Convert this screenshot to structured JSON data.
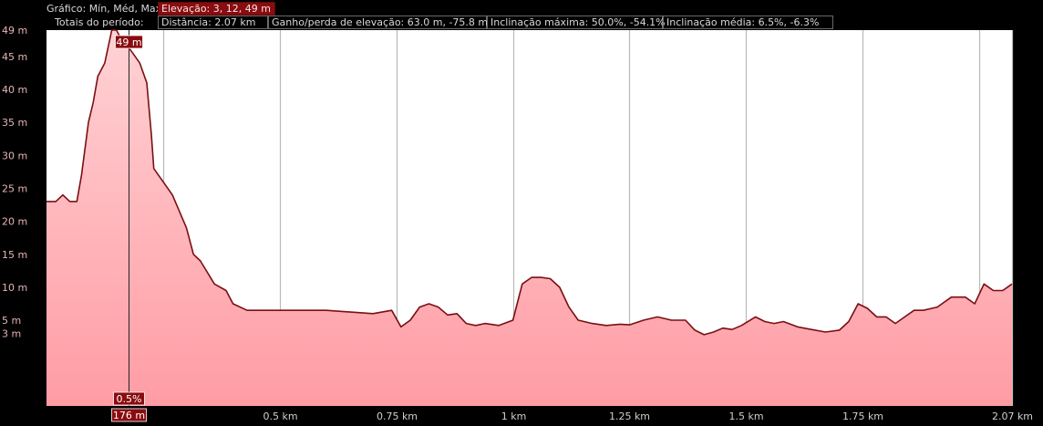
{
  "header": {
    "chart_label": "Gráfico: Mín, Méd, Max",
    "elevation_label": "Elevação: 3, 12, 49 m",
    "totals_label": "Totais do período:",
    "distance_label": "Distância: 2.07 km",
    "gain_loss_label": "Ganho/perda de elevação: 63.0 m, -75.8 m",
    "max_slope_label": "Inclinação máxima: 50.0%, -54.1%",
    "avg_slope_label": "Inclinação média: 6.5%, -6.3%"
  },
  "cursor": {
    "elevation_label": "49 m",
    "slope_label": "0.5%",
    "distance_label": "176 m",
    "distance_km": 0.176
  },
  "colors": {
    "background": "#000000",
    "plot_background": "#ffffff",
    "line": "#7a0f12",
    "fill_top": "#ffd2d5",
    "fill_bottom": "#ff9ca4",
    "grid": "#b9b9b9",
    "axis_text": "#e6b4b4",
    "x_axis_text": "#cfcfcf",
    "badge": "#8a0c10"
  },
  "chart_data": {
    "type": "area",
    "title": "",
    "xlabel": "",
    "ylabel": "",
    "xlim": [
      0,
      2.07
    ],
    "ylim": [
      -8,
      49
    ],
    "y_ticks": [
      {
        "value": 3,
        "label": "3 m"
      },
      {
        "value": 5,
        "label": "5 m"
      },
      {
        "value": 10,
        "label": "10 m"
      },
      {
        "value": 15,
        "label": "15 m"
      },
      {
        "value": 20,
        "label": "20 m"
      },
      {
        "value": 25,
        "label": "25 m"
      },
      {
        "value": 30,
        "label": "30 m"
      },
      {
        "value": 35,
        "label": "35 m"
      },
      {
        "value": 40,
        "label": "40 m"
      },
      {
        "value": 45,
        "label": "45 m"
      },
      {
        "value": 49,
        "label": "49 m"
      }
    ],
    "x_ticks": [
      {
        "value": 0.25,
        "label": ""
      },
      {
        "value": 0.5,
        "label": "0.5 km"
      },
      {
        "value": 0.75,
        "label": "0.75 km"
      },
      {
        "value": 1.0,
        "label": "1 km"
      },
      {
        "value": 1.25,
        "label": "1.25 km"
      },
      {
        "value": 1.5,
        "label": "1.5 km"
      },
      {
        "value": 1.75,
        "label": "1.75 km"
      },
      {
        "value": 2.0,
        "label": ""
      },
      {
        "value": 2.07,
        "label": "2.07 km"
      }
    ],
    "grid": true,
    "series": [
      {
        "x": [
          0.0,
          0.02,
          0.035,
          0.05,
          0.065,
          0.075,
          0.09,
          0.1,
          0.11,
          0.125,
          0.14,
          0.15,
          0.165,
          0.18,
          0.2,
          0.215,
          0.225,
          0.23,
          0.25,
          0.27,
          0.3,
          0.315,
          0.33,
          0.36,
          0.385,
          0.4,
          0.43,
          0.47,
          0.5,
          0.53,
          0.55,
          0.6,
          0.7,
          0.74,
          0.76,
          0.78,
          0.8,
          0.82,
          0.84,
          0.86,
          0.88,
          0.9,
          0.92,
          0.94,
          0.97,
          1.0,
          1.02,
          1.04,
          1.06,
          1.08,
          1.1,
          1.12,
          1.14,
          1.17,
          1.2,
          1.23,
          1.25,
          1.28,
          1.31,
          1.34,
          1.37,
          1.39,
          1.41,
          1.43,
          1.45,
          1.47,
          1.49,
          1.52,
          1.54,
          1.56,
          1.58,
          1.61,
          1.64,
          1.67,
          1.7,
          1.72,
          1.74,
          1.76,
          1.78,
          1.8,
          1.82,
          1.84,
          1.86,
          1.88,
          1.91,
          1.94,
          1.97,
          1.99,
          2.01,
          2.03,
          2.05,
          2.07
        ],
        "values": [
          23,
          23,
          24,
          23,
          23,
          27,
          35,
          38,
          42,
          44,
          49,
          49,
          47,
          46,
          44,
          41,
          33,
          28,
          26,
          24,
          19,
          15,
          14,
          10.5,
          9.5,
          7.5,
          6.5,
          6.5,
          6.5,
          6.5,
          6.5,
          6.5,
          6,
          6.5,
          4,
          5,
          7,
          7.5,
          7,
          5.8,
          6,
          4.5,
          4.2,
          4.5,
          4.2,
          5,
          10.5,
          11.5,
          11.5,
          11.3,
          10,
          7,
          5,
          4.5,
          4.2,
          4.4,
          4.3,
          5,
          5.5,
          5,
          5,
          3.5,
          2.8,
          3.2,
          3.8,
          3.6,
          4.2,
          5.5,
          4.8,
          4.5,
          4.8,
          4,
          3.6,
          3.2,
          3.5,
          4.8,
          7.5,
          6.8,
          5.5,
          5.5,
          4.5,
          5.5,
          6.5,
          6.5,
          7,
          8.5,
          8.5,
          7.5,
          10.5,
          9.5,
          9.5,
          10.5
        ]
      }
    ]
  }
}
